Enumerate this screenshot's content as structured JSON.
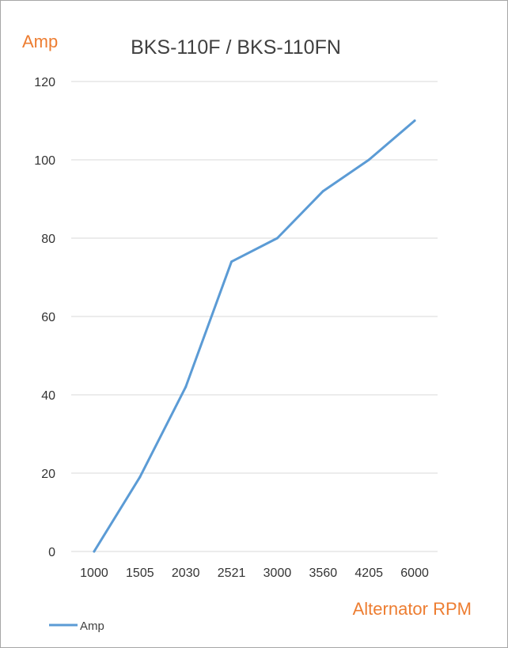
{
  "chart_data": {
    "type": "line",
    "title": "BKS-110F / BKS-110FN",
    "xlabel": "Alternator RPM",
    "ylabel": "Amp",
    "categories": [
      "1000",
      "1505",
      "2030",
      "2521",
      "3000",
      "3560",
      "4205",
      "6000"
    ],
    "series": [
      {
        "name": "Amp",
        "values": [
          0,
          19,
          42,
          74,
          80,
          92,
          100,
          110
        ]
      }
    ],
    "ylim": [
      0,
      120
    ],
    "yticks": [
      0,
      20,
      40,
      60,
      80,
      100,
      120
    ],
    "grid": true,
    "legend": "bottom-left",
    "colors": {
      "series": "#5b9bd5",
      "axis_titles": "#ed7d31",
      "title": "#404040",
      "grid": "#d9d9d9",
      "border": "#a6a6a6"
    }
  }
}
